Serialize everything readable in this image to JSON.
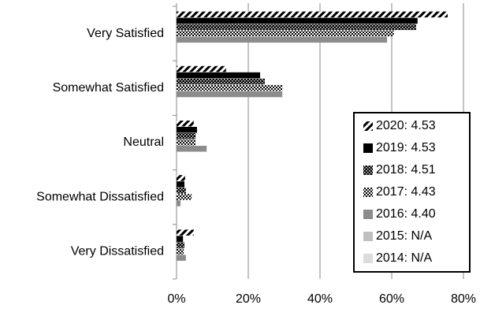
{
  "chart_data": {
    "type": "hbar",
    "categories": [
      "Very Satisfied",
      "Somewhat Satisfied",
      "Neutral",
      "Somewhat Dissatisfied",
      "Very Dissatisfied"
    ],
    "series": [
      {
        "name": "2020: 4.53",
        "color": "#000000",
        "pattern": "diagonal",
        "values": [
          75.6,
          13.8,
          4.8,
          2.4,
          4.8
        ]
      },
      {
        "name": "2019: 4.53",
        "color": "#000000",
        "pattern": "solid",
        "values": [
          67.2,
          23.3,
          5.7,
          2.2,
          1.8
        ]
      },
      {
        "name": "2018: 4.51",
        "color": "#000000",
        "pattern": "checker-dark",
        "values": [
          66.8,
          24.6,
          5.3,
          2.6,
          2.2
        ]
      },
      {
        "name": "2017: 4.43",
        "color": "#000000",
        "pattern": "checker",
        "values": [
          60.6,
          29.5,
          5.3,
          4.2,
          2.0
        ]
      },
      {
        "name": "2016: 4.40",
        "color": "#8c8c8c",
        "pattern": "solid",
        "values": [
          58.7,
          29.5,
          8.4,
          1.1,
          2.6
        ]
      },
      {
        "name": "2015: N/A",
        "color": "#bfbfbf",
        "pattern": "solid",
        "values": [
          null,
          null,
          null,
          null,
          null
        ]
      },
      {
        "name": "2014: N/A",
        "color": "#dcdcdc",
        "pattern": "solid",
        "values": [
          null,
          null,
          null,
          null,
          null
        ]
      }
    ],
    "xlim": [
      0,
      80
    ],
    "xticks": [
      {
        "value": 0,
        "label": "0%"
      },
      {
        "value": 20,
        "label": "20%"
      },
      {
        "value": 40,
        "label": "40%"
      },
      {
        "value": 60,
        "label": "60%"
      },
      {
        "value": 80,
        "label": "80%"
      }
    ],
    "grid": true,
    "legend": "right"
  }
}
